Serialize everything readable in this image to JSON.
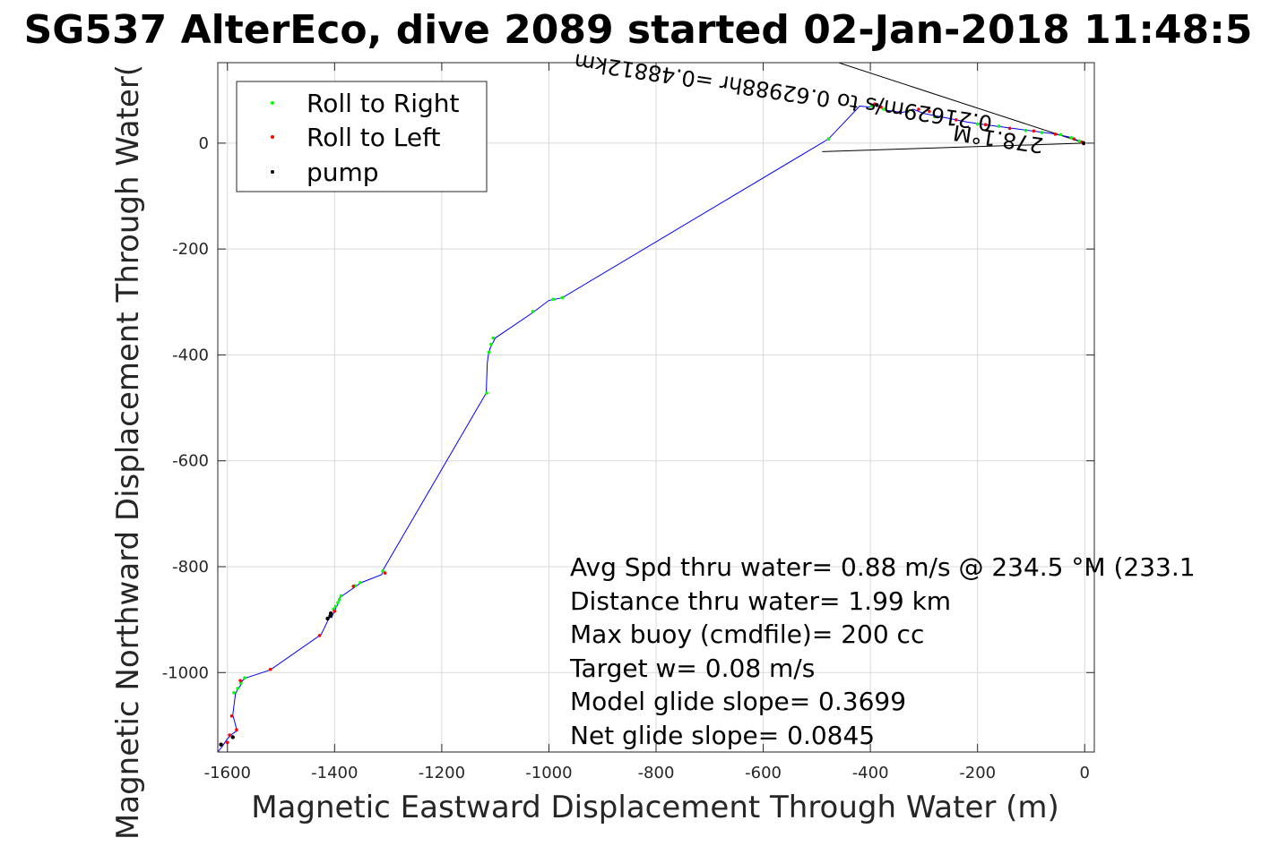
{
  "chart_data": {
    "type": "line",
    "title": "SG537 AlterEco, dive 2089 started 02-Jan-2018 11:48:5",
    "xlabel": "Magnetic Eastward Displacement Through Water (m)",
    "ylabel": "Magnetic Northward Displacement Through Water(",
    "xlim": [
      -1618,
      18
    ],
    "ylim": [
      -1150,
      152
    ],
    "xticks": [
      -1600,
      -1400,
      -1200,
      -1000,
      -800,
      -600,
      -400,
      -200,
      0
    ],
    "yticks": [
      -1000,
      -800,
      -600,
      -400,
      -200,
      0
    ],
    "xtick_labels": [
      "-1600",
      "-1400",
      "-1200",
      "-1000",
      "-800",
      "-600",
      "-400",
      "-200",
      "0"
    ],
    "ytick_labels": [
      "-1000",
      "-800",
      "-600",
      "-400",
      "-200",
      "0"
    ],
    "grid": true,
    "legend_position": "top-left",
    "legend": [
      {
        "label": "Roll to Right",
        "color": "#00ff00"
      },
      {
        "label": "Roll to Left",
        "color": "#ff0000"
      },
      {
        "label": "pump",
        "color": "#000000"
      }
    ],
    "track_color": "#0000ff",
    "track": {
      "x": [
        0,
        -15,
        -30,
        -60,
        -90,
        -120,
        -150,
        -180,
        -220,
        -260,
        -300,
        -320,
        -340,
        -370,
        -390,
        -400,
        -420,
        -478,
        -975,
        -1000,
        -1030,
        -1100,
        -1105,
        -1110,
        -1113,
        -1115,
        -1117,
        -1310,
        -1312,
        -1350,
        -1360,
        -1390,
        -1392,
        -1395,
        -1400,
        -1405,
        -1406,
        -1425,
        -1520,
        -1565,
        -1572,
        -1576,
        -1580,
        -1585,
        -1590,
        -1582,
        -1590,
        -1600,
        -1610,
        -1618
      ],
      "y": [
        0,
        6,
        12,
        18,
        22,
        26,
        30,
        34,
        40,
        48,
        56,
        64,
        58,
        62,
        72,
        68,
        70,
        8,
        -292,
        -297,
        -320,
        -368,
        -378,
        -388,
        -400,
        -415,
        -472,
        -807,
        -815,
        -830,
        -837,
        -858,
        -866,
        -873,
        -883,
        -895,
        -888,
        -928,
        -995,
        -1010,
        -1015,
        -1025,
        -1030,
        -1040,
        -1080,
        -1110,
        -1115,
        -1125,
        -1140,
        -1150
      ]
    },
    "roll_right": {
      "x": [
        -10,
        -25,
        -45,
        -80,
        -110,
        -160,
        -200,
        -280,
        -330,
        -375,
        -398,
        -478,
        -975,
        -992,
        -1030,
        -1104,
        -1108,
        -1112,
        -1116,
        -1310,
        -1352,
        -1362,
        -1388,
        -1391,
        -1394,
        -1398,
        -1402,
        -1568,
        -1575,
        -1581,
        -1588
      ],
      "y": [
        4,
        10,
        16,
        20,
        24,
        32,
        36,
        50,
        60,
        64,
        70,
        8,
        -292,
        -295,
        -318,
        -368,
        -380,
        -395,
        -472,
        -808,
        -830,
        -836,
        -855,
        -862,
        -868,
        -875,
        -880,
        -1010,
        -1020,
        -1030,
        -1038
      ]
    },
    "roll_left": {
      "x": [
        -5,
        -20,
        -55,
        -95,
        -140,
        -185,
        -240,
        -290,
        -310,
        -345,
        -380,
        -392,
        -1306,
        -1365,
        -1400,
        -1428,
        -1520,
        -1576,
        -1583,
        -1592,
        -1596,
        -1600
      ],
      "y": [
        2,
        8,
        17,
        23,
        28,
        35,
        44,
        60,
        64,
        58,
        68,
        74,
        -812,
        -837,
        -884,
        -930,
        -994,
        -1015,
        -1108,
        -1082,
        -1118,
        -1132
      ]
    },
    "pump": {
      "x": [
        -2,
        -1407,
        -1408,
        -1413,
        -1612,
        -1590,
        -388
      ],
      "y": [
        0,
        -888,
        -893,
        -898,
        -1136,
        -1122,
        72
      ]
    },
    "annotations": [
      "Avg Spd thru water=  0.88 m/s @ 234.5 °M (233.1",
      "Distance thru water=  1.99 km",
      "Max buoy (cmdfile)= 200 cc",
      "Target w= 0.08 m/s",
      "Model glide slope= 0.3699",
      "Net glide slope= 0.0845"
    ],
    "current_annotation": {
      "lines": [
        "0.21629m/s to 0.62988hr =0.48812km",
        "278.1°M"
      ],
      "arrow_tail": [
        0,
        0
      ],
      "arrow_head": [
        -485,
        152
      ],
      "arrow_base": [
        -490,
        -16
      ]
    }
  }
}
